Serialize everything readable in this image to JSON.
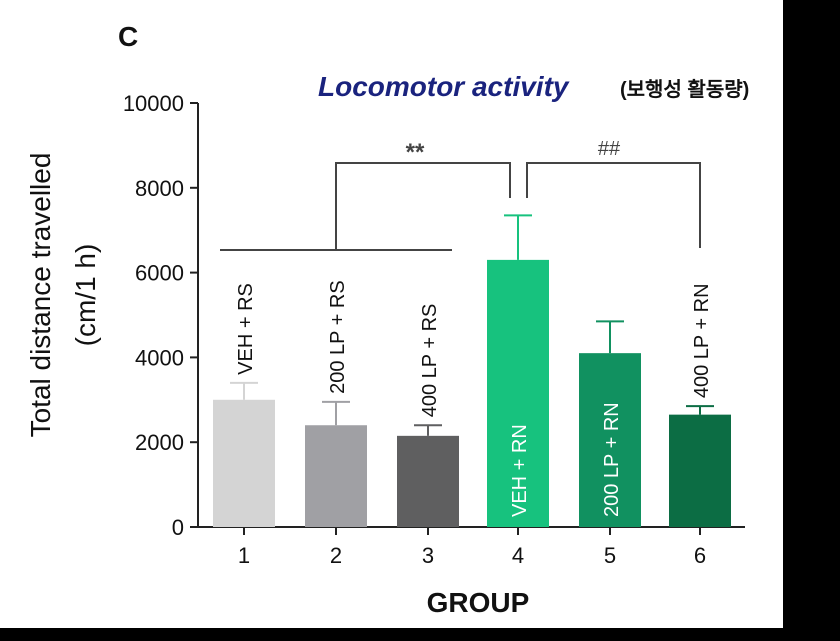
{
  "panel_letter": "C",
  "title_en": "Locomotor activity",
  "title_ko": "(보행성 활동량)",
  "chart_data": {
    "type": "bar",
    "title": "Locomotor activity (보행성 활동량)",
    "xlabel": "GROUP",
    "ylabel_lines": [
      "Total distance travelled",
      "(cm/1 h)"
    ],
    "ylim": [
      0,
      10000
    ],
    "yticks": [
      0,
      2000,
      4000,
      6000,
      8000,
      10000
    ],
    "categories": [
      "1",
      "2",
      "3",
      "4",
      "5",
      "6"
    ],
    "group_labels": [
      "VEH + RS",
      "200 LP + RS",
      "400 LP + RS",
      "VEH + RN",
      "200 LP + RN",
      "400 LP + RN"
    ],
    "values": [
      3000,
      2400,
      2150,
      6300,
      4100,
      2650
    ],
    "errors": [
      400,
      550,
      250,
      1050,
      750,
      200
    ],
    "colors": [
      "#d4d4d4",
      "#a0a0a4",
      "#5f5f60",
      "#17c27e",
      "#119160",
      "#0c6d44"
    ],
    "significance": [
      {
        "symbol": "**",
        "from": "1-3",
        "to": "4"
      },
      {
        "symbol": "##",
        "from": "4",
        "to": "6"
      }
    ],
    "grid": false,
    "legend": "none"
  }
}
